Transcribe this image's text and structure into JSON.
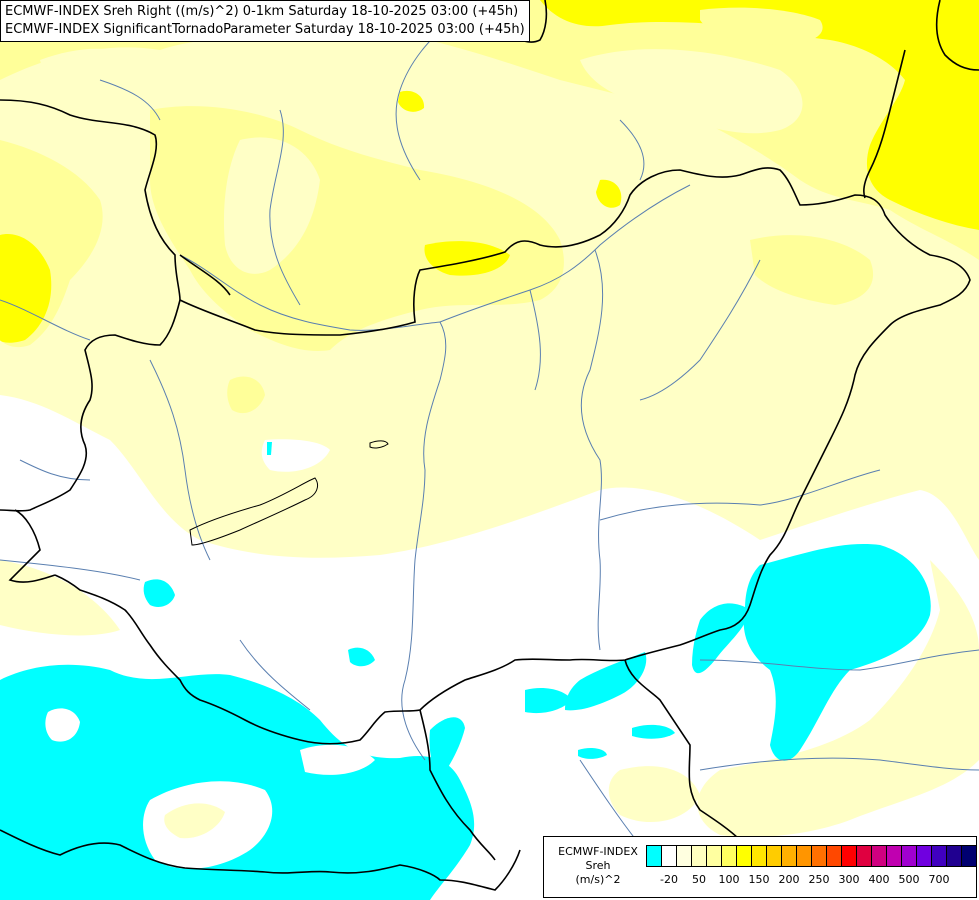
{
  "title": {
    "line1": "ECMWF-INDEX Sreh Right ((m/s)^2) 0-1km Saturday 18-10-2025 03:00 (+45h)",
    "line2": "ECMWF-INDEX SignificantTornadoParameter Saturday 18-10-2025 03:00 (+45h)"
  },
  "legend": {
    "title_line1": "ECMWF-INDEX",
    "title_line2": "Sreh",
    "title_line3": "(m/s)^2",
    "colors": [
      "#00ffff",
      "#ffffff",
      "#ffffe0",
      "#ffffc0",
      "#ffffa0",
      "#ffff60",
      "#ffff00",
      "#ffe600",
      "#ffcc00",
      "#ffb000",
      "#ff9500",
      "#ff7000",
      "#ff4800",
      "#ff0000",
      "#e00040",
      "#d00080",
      "#c000b0",
      "#a000d0",
      "#7000e0",
      "#4000c0",
      "#200090",
      "#000070"
    ],
    "tick_labels": [
      "-20",
      "50",
      "100",
      "150",
      "200",
      "250",
      "300",
      "400",
      "500",
      "700"
    ],
    "tick_index": [
      1,
      3,
      5,
      7,
      9,
      11,
      13,
      15,
      17,
      19
    ]
  },
  "map": {
    "region": "Hungary / Carpathian Basin",
    "colors": {
      "cyan": "#00ffff",
      "white": "#ffffff",
      "pale": "#ffffc6",
      "light": "#ffff99",
      "yellow": "#ffff00",
      "border": "#000000",
      "river": "#5a7fb0"
    }
  }
}
